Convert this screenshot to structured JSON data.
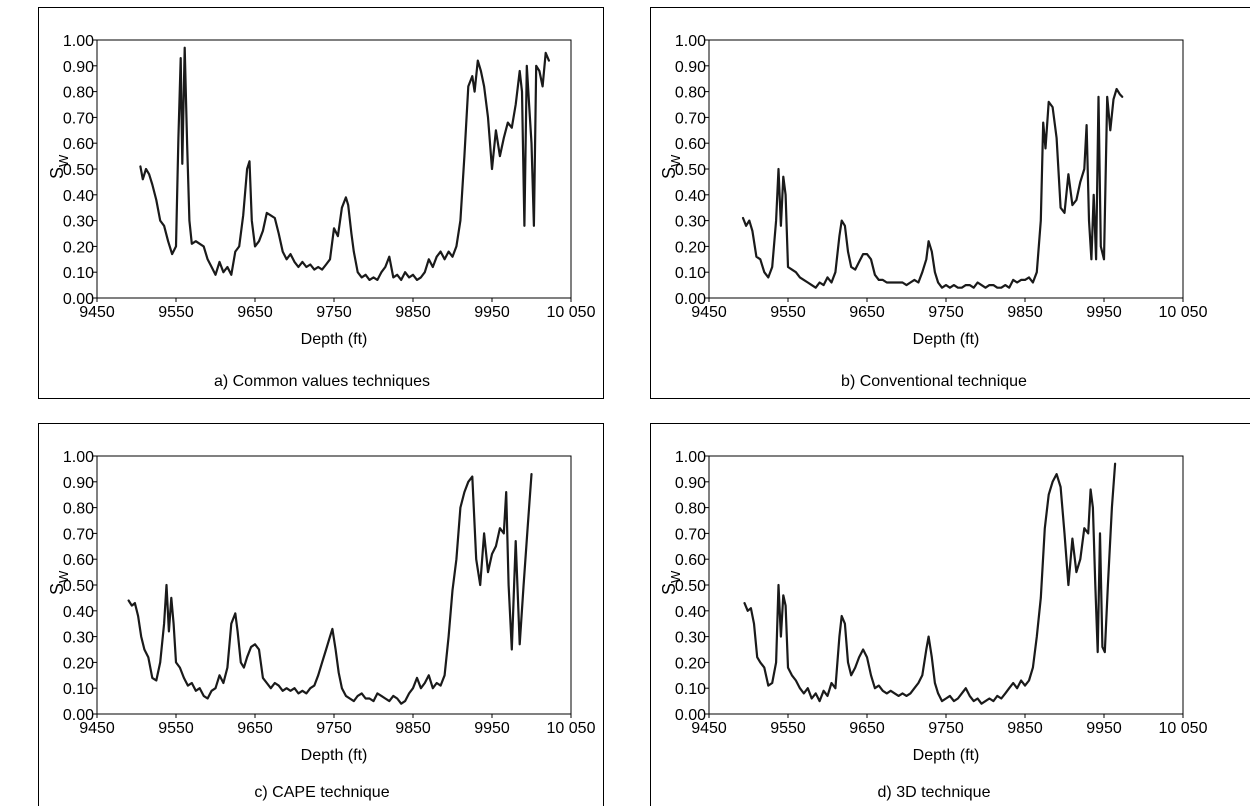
{
  "chart_data": [
    {
      "type": "line",
      "caption": "a) Common values techniques",
      "xlabel": "Depth (ft)",
      "ylabel_main": "S",
      "ylabel_sub": "W",
      "xlim": [
        9450,
        10050
      ],
      "ylim": [
        0,
        1
      ],
      "xticks": [
        9450,
        9550,
        9650,
        9750,
        9850,
        9950,
        10050
      ],
      "xtick_labels": [
        "9450",
        "9550",
        "9650",
        "9750",
        "9850",
        "9950",
        "10 050"
      ],
      "yticks": [
        0,
        0.1,
        0.2,
        0.3,
        0.4,
        0.5,
        0.6,
        0.7,
        0.8,
        0.9,
        1.0
      ],
      "ytick_labels": [
        "0.00",
        "0.10",
        "0.20",
        "0.30",
        "0.40",
        "0.50",
        "0.60",
        "0.70",
        "0.80",
        "0.90",
        "1.00"
      ],
      "grid": false,
      "series": [
        {
          "x": [
            9505,
            9508,
            9512,
            9516,
            9520,
            9525,
            9530,
            9535,
            9540,
            9545,
            9550,
            9553,
            9556,
            9558,
            9561,
            9564,
            9567,
            9570,
            9575,
            9580,
            9585,
            9590,
            9595,
            9600,
            9605,
            9610,
            9615,
            9620,
            9625,
            9630,
            9635,
            9640,
            9643,
            9646,
            9650,
            9655,
            9660,
            9665,
            9670,
            9675,
            9680,
            9685,
            9690,
            9695,
            9700,
            9705,
            9710,
            9715,
            9720,
            9725,
            9730,
            9735,
            9740,
            9745,
            9750,
            9755,
            9760,
            9765,
            9768,
            9772,
            9775,
            9780,
            9785,
            9790,
            9795,
            9800,
            9805,
            9810,
            9815,
            9820,
            9825,
            9830,
            9835,
            9840,
            9845,
            9850,
            9855,
            9860,
            9865,
            9870,
            9875,
            9880,
            9885,
            9890,
            9895,
            9900,
            9905,
            9910,
            9915,
            9920,
            9925,
            9928,
            9932,
            9936,
            9940,
            9945,
            9950,
            9955,
            9960,
            9965,
            9970,
            9975,
            9980,
            9985,
            9988,
            9991,
            9994,
            9997,
            10000,
            10003,
            10006,
            10010,
            10014,
            10018,
            10022
          ],
          "y": [
            0.51,
            0.46,
            0.5,
            0.48,
            0.44,
            0.38,
            0.3,
            0.28,
            0.22,
            0.17,
            0.2,
            0.62,
            0.93,
            0.52,
            0.97,
            0.6,
            0.3,
            0.21,
            0.22,
            0.21,
            0.2,
            0.15,
            0.12,
            0.09,
            0.14,
            0.1,
            0.12,
            0.09,
            0.18,
            0.2,
            0.32,
            0.5,
            0.53,
            0.3,
            0.2,
            0.22,
            0.26,
            0.33,
            0.32,
            0.31,
            0.25,
            0.18,
            0.15,
            0.17,
            0.14,
            0.12,
            0.14,
            0.12,
            0.13,
            0.11,
            0.12,
            0.11,
            0.13,
            0.15,
            0.27,
            0.24,
            0.35,
            0.39,
            0.36,
            0.25,
            0.18,
            0.1,
            0.08,
            0.09,
            0.07,
            0.08,
            0.07,
            0.1,
            0.12,
            0.16,
            0.08,
            0.09,
            0.07,
            0.1,
            0.08,
            0.09,
            0.07,
            0.08,
            0.1,
            0.15,
            0.12,
            0.16,
            0.18,
            0.15,
            0.18,
            0.16,
            0.2,
            0.3,
            0.55,
            0.82,
            0.86,
            0.8,
            0.92,
            0.88,
            0.82,
            0.7,
            0.5,
            0.65,
            0.55,
            0.62,
            0.68,
            0.66,
            0.75,
            0.88,
            0.8,
            0.28,
            0.9,
            0.75,
            0.6,
            0.28,
            0.9,
            0.88,
            0.82,
            0.95,
            0.92
          ]
        }
      ]
    },
    {
      "type": "line",
      "caption": "b) Conventional technique",
      "xlabel": "Depth (ft)",
      "ylabel_main": "S",
      "ylabel_sub": "W",
      "xlim": [
        9450,
        10050
      ],
      "ylim": [
        0,
        1
      ],
      "xticks": [
        9450,
        9550,
        9650,
        9750,
        9850,
        9950,
        10050
      ],
      "xtick_labels": [
        "9450",
        "9550",
        "9650",
        "9750",
        "9850",
        "9950",
        "10 050"
      ],
      "yticks": [
        0,
        0.1,
        0.2,
        0.3,
        0.4,
        0.5,
        0.6,
        0.7,
        0.8,
        0.9,
        1.0
      ],
      "ytick_labels": [
        "0.00",
        "0.10",
        "0.20",
        "0.30",
        "0.40",
        "0.50",
        "0.60",
        "0.70",
        "0.80",
        "0.90",
        "1.00"
      ],
      "grid": false,
      "series": [
        {
          "x": [
            9493,
            9497,
            9501,
            9505,
            9510,
            9515,
            9520,
            9525,
            9530,
            9535,
            9538,
            9541,
            9544,
            9547,
            9550,
            9555,
            9560,
            9565,
            9570,
            9575,
            9580,
            9585,
            9590,
            9595,
            9600,
            9605,
            9610,
            9615,
            9618,
            9622,
            9626,
            9630,
            9635,
            9640,
            9645,
            9650,
            9655,
            9660,
            9665,
            9670,
            9675,
            9680,
            9685,
            9690,
            9695,
            9700,
            9705,
            9710,
            9715,
            9720,
            9725,
            9728,
            9732,
            9736,
            9740,
            9745,
            9750,
            9755,
            9760,
            9765,
            9770,
            9775,
            9780,
            9785,
            9790,
            9795,
            9800,
            9805,
            9810,
            9815,
            9820,
            9825,
            9830,
            9835,
            9840,
            9845,
            9850,
            9855,
            9860,
            9865,
            9870,
            9873,
            9876,
            9880,
            9885,
            9890,
            9895,
            9900,
            9905,
            9910,
            9915,
            9920,
            9925,
            9928,
            9931,
            9934,
            9937,
            9940,
            9943,
            9946,
            9950,
            9954,
            9958,
            9962,
            9966,
            9970,
            9973
          ],
          "y": [
            0.31,
            0.28,
            0.3,
            0.26,
            0.16,
            0.15,
            0.1,
            0.08,
            0.12,
            0.3,
            0.5,
            0.28,
            0.47,
            0.4,
            0.12,
            0.11,
            0.1,
            0.08,
            0.07,
            0.06,
            0.05,
            0.04,
            0.06,
            0.05,
            0.08,
            0.06,
            0.1,
            0.24,
            0.3,
            0.28,
            0.18,
            0.12,
            0.11,
            0.14,
            0.17,
            0.17,
            0.15,
            0.09,
            0.07,
            0.07,
            0.06,
            0.06,
            0.06,
            0.06,
            0.06,
            0.05,
            0.06,
            0.07,
            0.06,
            0.1,
            0.15,
            0.22,
            0.18,
            0.1,
            0.06,
            0.04,
            0.05,
            0.04,
            0.05,
            0.04,
            0.04,
            0.05,
            0.05,
            0.04,
            0.06,
            0.05,
            0.04,
            0.05,
            0.05,
            0.04,
            0.04,
            0.05,
            0.04,
            0.07,
            0.06,
            0.07,
            0.07,
            0.08,
            0.06,
            0.1,
            0.3,
            0.68,
            0.58,
            0.76,
            0.74,
            0.62,
            0.35,
            0.33,
            0.48,
            0.36,
            0.38,
            0.45,
            0.5,
            0.67,
            0.3,
            0.15,
            0.4,
            0.15,
            0.78,
            0.2,
            0.15,
            0.78,
            0.65,
            0.77,
            0.81,
            0.79,
            0.78
          ]
        }
      ]
    },
    {
      "type": "line",
      "caption": "c) CAPE technique",
      "xlabel": "Depth (ft)",
      "ylabel_main": "S",
      "ylabel_sub": "W",
      "xlim": [
        9450,
        10050
      ],
      "ylim": [
        0,
        1
      ],
      "xticks": [
        9450,
        9550,
        9650,
        9750,
        9850,
        9950,
        10050
      ],
      "xtick_labels": [
        "9450",
        "9550",
        "9650",
        "9750",
        "9850",
        "9950",
        "10 050"
      ],
      "yticks": [
        0,
        0.1,
        0.2,
        0.3,
        0.4,
        0.5,
        0.6,
        0.7,
        0.8,
        0.9,
        1.0
      ],
      "ytick_labels": [
        "0.00",
        "0.10",
        "0.20",
        "0.30",
        "0.40",
        "0.50",
        "0.60",
        "0.70",
        "0.80",
        "0.90",
        "1.00"
      ],
      "grid": false,
      "series": [
        {
          "x": [
            9490,
            9494,
            9498,
            9502,
            9506,
            9510,
            9515,
            9520,
            9525,
            9530,
            9535,
            9538,
            9541,
            9544,
            9547,
            9550,
            9555,
            9560,
            9565,
            9570,
            9575,
            9580,
            9585,
            9590,
            9595,
            9600,
            9605,
            9610,
            9615,
            9620,
            9625,
            9628,
            9632,
            9636,
            9640,
            9645,
            9650,
            9655,
            9660,
            9665,
            9670,
            9675,
            9680,
            9685,
            9690,
            9695,
            9700,
            9705,
            9710,
            9715,
            9720,
            9725,
            9730,
            9735,
            9740,
            9745,
            9748,
            9752,
            9756,
            9760,
            9765,
            9770,
            9775,
            9780,
            9785,
            9790,
            9795,
            9800,
            9805,
            9810,
            9815,
            9820,
            9825,
            9830,
            9835,
            9840,
            9845,
            9850,
            9855,
            9860,
            9865,
            9870,
            9875,
            9880,
            9885,
            9890,
            9895,
            9900,
            9905,
            9910,
            9915,
            9920,
            9925,
            9930,
            9935,
            9940,
            9945,
            9950,
            9955,
            9960,
            9965,
            9968,
            9971,
            9975,
            9980,
            9985,
            9990,
            9995,
            10000
          ],
          "y": [
            0.44,
            0.42,
            0.43,
            0.38,
            0.3,
            0.25,
            0.22,
            0.14,
            0.13,
            0.2,
            0.35,
            0.5,
            0.32,
            0.45,
            0.35,
            0.2,
            0.18,
            0.14,
            0.11,
            0.12,
            0.09,
            0.1,
            0.07,
            0.06,
            0.09,
            0.1,
            0.15,
            0.12,
            0.18,
            0.35,
            0.39,
            0.32,
            0.2,
            0.18,
            0.22,
            0.26,
            0.27,
            0.25,
            0.14,
            0.12,
            0.1,
            0.12,
            0.11,
            0.09,
            0.1,
            0.09,
            0.1,
            0.08,
            0.09,
            0.08,
            0.1,
            0.11,
            0.15,
            0.2,
            0.25,
            0.3,
            0.33,
            0.25,
            0.16,
            0.1,
            0.07,
            0.06,
            0.05,
            0.07,
            0.08,
            0.06,
            0.06,
            0.05,
            0.08,
            0.07,
            0.06,
            0.05,
            0.07,
            0.06,
            0.04,
            0.05,
            0.08,
            0.1,
            0.14,
            0.1,
            0.12,
            0.15,
            0.1,
            0.12,
            0.11,
            0.15,
            0.3,
            0.48,
            0.6,
            0.8,
            0.86,
            0.9,
            0.92,
            0.6,
            0.5,
            0.7,
            0.55,
            0.62,
            0.65,
            0.72,
            0.7,
            0.86,
            0.5,
            0.25,
            0.67,
            0.27,
            0.5,
            0.72,
            0.93
          ]
        }
      ]
    },
    {
      "type": "line",
      "caption": "d) 3D technique",
      "xlabel": "Depth (ft)",
      "ylabel_main": "S",
      "ylabel_sub": "W",
      "xlim": [
        9450,
        10050
      ],
      "ylim": [
        0,
        1
      ],
      "xticks": [
        9450,
        9550,
        9650,
        9750,
        9850,
        9950,
        10050
      ],
      "xtick_labels": [
        "9450",
        "9550",
        "9650",
        "9750",
        "9850",
        "9950",
        "10 050"
      ],
      "yticks": [
        0,
        0.1,
        0.2,
        0.3,
        0.4,
        0.5,
        0.6,
        0.7,
        0.8,
        0.9,
        1.0
      ],
      "ytick_labels": [
        "0.00",
        "0.10",
        "0.20",
        "0.30",
        "0.40",
        "0.50",
        "0.60",
        "0.70",
        "0.80",
        "0.90",
        "1.00"
      ],
      "grid": false,
      "series": [
        {
          "x": [
            9495,
            9499,
            9503,
            9507,
            9511,
            9515,
            9520,
            9525,
            9530,
            9535,
            9538,
            9541,
            9544,
            9547,
            9550,
            9555,
            9560,
            9565,
            9570,
            9575,
            9580,
            9585,
            9590,
            9595,
            9600,
            9605,
            9610,
            9615,
            9618,
            9622,
            9626,
            9630,
            9635,
            9640,
            9645,
            9650,
            9655,
            9660,
            9665,
            9670,
            9675,
            9680,
            9685,
            9690,
            9695,
            9700,
            9705,
            9710,
            9715,
            9720,
            9725,
            9728,
            9732,
            9736,
            9740,
            9745,
            9750,
            9755,
            9760,
            9765,
            9770,
            9775,
            9780,
            9785,
            9790,
            9795,
            9800,
            9805,
            9810,
            9815,
            9820,
            9825,
            9830,
            9835,
            9840,
            9845,
            9850,
            9855,
            9860,
            9865,
            9870,
            9875,
            9880,
            9885,
            9890,
            9895,
            9900,
            9905,
            9910,
            9915,
            9920,
            9925,
            9930,
            9933,
            9936,
            9939,
            9942,
            9945,
            9948,
            9951,
            9955,
            9960,
            9964
          ],
          "y": [
            0.43,
            0.4,
            0.41,
            0.35,
            0.22,
            0.2,
            0.18,
            0.11,
            0.12,
            0.2,
            0.5,
            0.3,
            0.46,
            0.42,
            0.18,
            0.15,
            0.13,
            0.1,
            0.08,
            0.1,
            0.06,
            0.08,
            0.05,
            0.09,
            0.07,
            0.12,
            0.1,
            0.3,
            0.38,
            0.35,
            0.2,
            0.15,
            0.18,
            0.22,
            0.25,
            0.22,
            0.15,
            0.1,
            0.11,
            0.09,
            0.08,
            0.09,
            0.08,
            0.07,
            0.08,
            0.07,
            0.08,
            0.1,
            0.12,
            0.15,
            0.25,
            0.3,
            0.22,
            0.12,
            0.08,
            0.05,
            0.06,
            0.07,
            0.05,
            0.06,
            0.08,
            0.1,
            0.07,
            0.05,
            0.06,
            0.04,
            0.05,
            0.06,
            0.05,
            0.07,
            0.06,
            0.08,
            0.1,
            0.12,
            0.1,
            0.13,
            0.11,
            0.13,
            0.18,
            0.3,
            0.45,
            0.72,
            0.85,
            0.9,
            0.93,
            0.88,
            0.7,
            0.5,
            0.68,
            0.55,
            0.6,
            0.72,
            0.7,
            0.87,
            0.8,
            0.5,
            0.24,
            0.7,
            0.26,
            0.24,
            0.5,
            0.8,
            0.97
          ]
        }
      ]
    }
  ]
}
